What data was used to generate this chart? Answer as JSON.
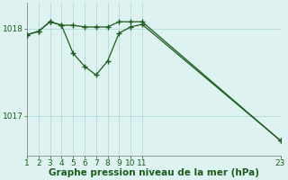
{
  "line1_x": [
    1,
    2,
    3,
    4,
    5,
    6,
    7,
    8,
    9,
    10,
    11,
    23
  ],
  "line1_y": [
    1017.93,
    1017.97,
    1018.08,
    1018.04,
    1018.04,
    1018.02,
    1018.02,
    1018.02,
    1018.08,
    1018.08,
    1018.08,
    1016.72
  ],
  "line2_x": [
    1,
    2,
    3,
    4,
    5,
    6,
    7,
    8,
    9,
    10,
    11,
    23
  ],
  "line2_y": [
    1017.93,
    1017.97,
    1018.08,
    1018.04,
    1017.72,
    1017.57,
    1017.47,
    1017.63,
    1017.95,
    1018.02,
    1018.05,
    1016.72
  ],
  "line_color": "#1a5c1a",
  "bg_color": "#dff2f2",
  "grid_color": "#b8dede",
  "xlabel": "Graphe pression niveau de la mer (hPa)",
  "yticks": [
    1017,
    1018
  ],
  "xlim": [
    1,
    23
  ],
  "ylim": [
    1016.55,
    1018.3
  ],
  "xticks": [
    1,
    2,
    3,
    4,
    5,
    6,
    7,
    8,
    9,
    10,
    11,
    23
  ],
  "xtick_labels": [
    "1",
    "2",
    "3",
    "4",
    "5",
    "6",
    "7",
    "8",
    "9",
    "10",
    "11",
    "23"
  ],
  "marker": "+",
  "markersize": 4,
  "linewidth": 0.9,
  "tick_fontsize": 6.5,
  "xlabel_fontsize": 7.5
}
